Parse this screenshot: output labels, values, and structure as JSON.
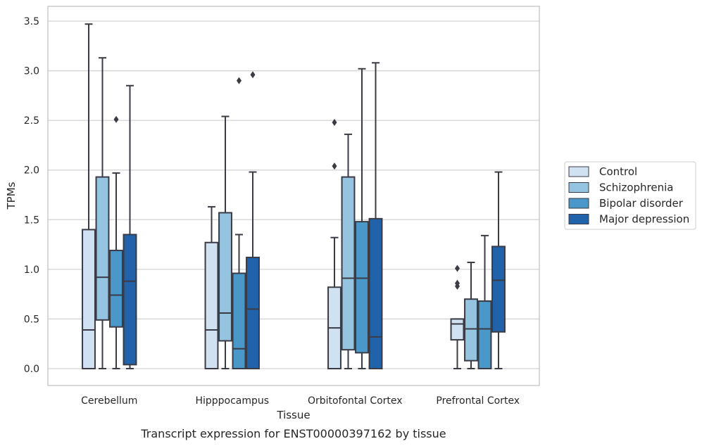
{
  "chart_data": {
    "type": "boxplot",
    "xlabel": "Tissue",
    "ylabel": "TPMs",
    "caption": "Transcript expression for ENST00000397162 by tissue",
    "ylim": [
      -0.17,
      3.65
    ],
    "yticks": [
      "0.0",
      "0.5",
      "1.0",
      "1.5",
      "2.0",
      "2.5",
      "3.0",
      "3.5"
    ],
    "grid": "horizontal",
    "legend_position": "right",
    "categories": [
      "Cerebellum",
      "Hipppocampus",
      "Orbitofontal Cortex",
      "Prefrontal Cortex"
    ],
    "series": [
      {
        "name": "Control",
        "color": "#d0e1f2",
        "boxes": [
          {
            "whislo": 0.0,
            "q1": 0.0,
            "med": 0.39,
            "q3": 1.4,
            "whishi": 3.47,
            "fliers": []
          },
          {
            "whislo": 0.0,
            "q1": 0.0,
            "med": 0.39,
            "q3": 1.27,
            "whishi": 1.63,
            "fliers": []
          },
          {
            "whislo": 0.0,
            "q1": 0.0,
            "med": 0.41,
            "q3": 0.82,
            "whishi": 1.32,
            "fliers": [
              2.04,
              2.48
            ]
          },
          {
            "whislo": 0.0,
            "q1": 0.29,
            "med": 0.45,
            "q3": 0.5,
            "whishi": 0.5,
            "fliers": [
              0.83,
              0.86,
              1.01
            ]
          }
        ]
      },
      {
        "name": "Schizophrenia",
        "color": "#94c4df",
        "boxes": [
          {
            "whislo": 0.0,
            "q1": 0.49,
            "med": 0.92,
            "q3": 1.93,
            "whishi": 3.13,
            "fliers": []
          },
          {
            "whislo": 0.0,
            "q1": 0.28,
            "med": 0.56,
            "q3": 1.57,
            "whishi": 2.54,
            "fliers": []
          },
          {
            "whislo": 0.0,
            "q1": 0.19,
            "med": 0.91,
            "q3": 1.93,
            "whishi": 2.36,
            "fliers": []
          },
          {
            "whislo": 0.0,
            "q1": 0.08,
            "med": 0.4,
            "q3": 0.7,
            "whishi": 1.07,
            "fliers": []
          }
        ]
      },
      {
        "name": "Bipolar disorder",
        "color": "#4a98c9",
        "boxes": [
          {
            "whislo": 0.0,
            "q1": 0.42,
            "med": 0.74,
            "q3": 1.19,
            "whishi": 1.97,
            "fliers": [
              2.51
            ]
          },
          {
            "whislo": 0.0,
            "q1": 0.0,
            "med": 0.2,
            "q3": 0.96,
            "whishi": 1.35,
            "fliers": [
              2.9
            ]
          },
          {
            "whislo": 0.0,
            "q1": 0.16,
            "med": 0.91,
            "q3": 1.48,
            "whishi": 3.02,
            "fliers": []
          },
          {
            "whislo": 0.0,
            "q1": 0.0,
            "med": 0.4,
            "q3": 0.68,
            "whishi": 1.34,
            "fliers": []
          }
        ]
      },
      {
        "name": "Major depression",
        "color": "#2163aa",
        "boxes": [
          {
            "whislo": 0.0,
            "q1": 0.04,
            "med": 0.88,
            "q3": 1.35,
            "whishi": 2.85,
            "fliers": []
          },
          {
            "whislo": 0.0,
            "q1": 0.0,
            "med": 0.6,
            "q3": 1.12,
            "whishi": 1.98,
            "fliers": [
              2.96
            ]
          },
          {
            "whislo": 0.0,
            "q1": 0.0,
            "med": 0.32,
            "q3": 1.51,
            "whishi": 3.08,
            "fliers": []
          },
          {
            "whislo": 0.0,
            "q1": 0.37,
            "med": 0.89,
            "q3": 1.23,
            "whishi": 1.98,
            "fliers": []
          }
        ]
      }
    ]
  }
}
